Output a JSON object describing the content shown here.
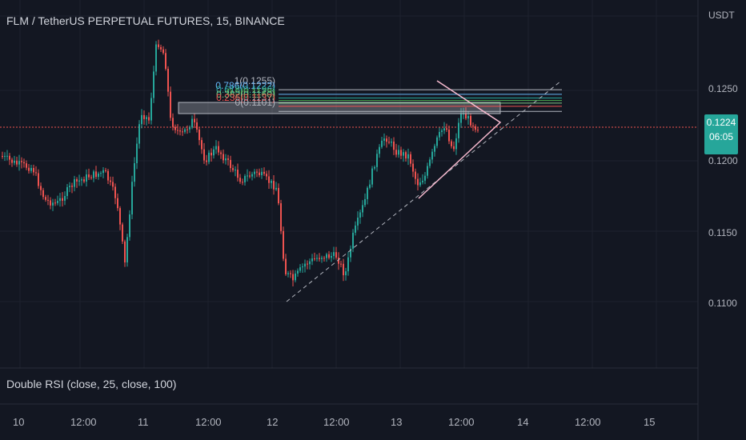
{
  "header": {
    "title": "FLM / TetherUS PERPETUAL FUTURES, 15, BINANCE"
  },
  "price_axis": {
    "currency": "USDT",
    "labels": [
      "0.1250",
      "0.1200",
      "0.1150",
      "0.1100"
    ],
    "current_price": "0.1224",
    "countdown": "06:05"
  },
  "indicator_pane": {
    "label": "Double RSI (close, 25, close, 100)"
  },
  "time_axis": {
    "labels": [
      "10",
      "12:00",
      "11",
      "12:00",
      "12",
      "12:00",
      "13",
      "12:00",
      "14",
      "12:00",
      "15"
    ]
  },
  "fib_levels": [
    {
      "label": "1(0.1255)",
      "value": 0.1255,
      "color": "#b2b5be"
    },
    {
      "label": "0.786(0.1222)",
      "value": 0.1222,
      "color": "#64b5f6"
    },
    {
      "label": "0.618(0.1196)",
      "value": 0.1196,
      "color": "#26a69a"
    },
    {
      "label": "0.5(0.1178)",
      "value": 0.1178,
      "color": "#4caf50"
    },
    {
      "label": "0.382(0.1160)",
      "value": 0.116,
      "color": "#81c784"
    },
    {
      "label": "0.236(0.1137)",
      "value": 0.1137,
      "color": "#ef5350"
    },
    {
      "label": "0(0.1101)",
      "value": 0.1101,
      "color": "#b2b5be"
    }
  ],
  "colors": {
    "up": "#26a69a",
    "down": "#ef5350",
    "background": "#131722",
    "grid": "#1e222d",
    "pattern": "#f8bbd0"
  }
}
